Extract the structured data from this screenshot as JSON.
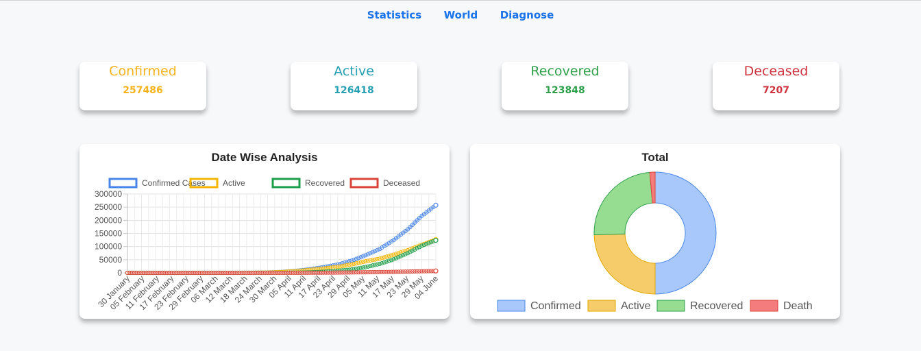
{
  "nav": {
    "items": [
      "Statistics",
      "World",
      "Diagnose"
    ]
  },
  "cards": [
    {
      "title": "Confirmed",
      "value": "257486",
      "color": "#f6b31b"
    },
    {
      "title": "Active",
      "value": "126418",
      "color": "#26a0b4"
    },
    {
      "title": "Recovered",
      "value": "123848",
      "color": "#2ea04a"
    },
    {
      "title": "Deceased",
      "value": "7207",
      "color": "#cf3340"
    }
  ],
  "chart_data": [
    {
      "type": "line",
      "title": "Date Wise Analysis",
      "legend_position": "top",
      "grid": true,
      "ylim": [
        0,
        300000
      ],
      "yticks": [
        "300000",
        "250000",
        "200000",
        "150000",
        "100000",
        "50000",
        "0"
      ],
      "xticks": [
        "30 January",
        "05 February",
        "11 February",
        "17 February",
        "23 February",
        "29 February",
        "06 March",
        "12 March",
        "18 March",
        "24 March",
        "30 March",
        "05 April",
        "11 April",
        "17 April",
        "23 April",
        "29 April",
        "05 May",
        "11 May",
        "17 May",
        "23 May",
        "29 May",
        "04 June"
      ],
      "series": [
        {
          "name": "Confirmed Cases",
          "color": "#4a86e8",
          "values": [
            1,
            3,
            3,
            3,
            3,
            3,
            31,
            74,
            151,
            519,
            1251,
            3577,
            7600,
            13387,
            21700,
            31332,
            46433,
            67152,
            90927,
            125101,
            165799,
            216919,
            257486
          ]
        },
        {
          "name": "Active",
          "color": "#f4b400",
          "values": [
            1,
            3,
            3,
            0,
            0,
            0,
            28,
            64,
            124,
            469,
            1117,
            3219,
            6565,
            11201,
            16689,
            22629,
            32134,
            44029,
            53946,
            69244,
            86110,
            106737,
            126418
          ]
        },
        {
          "name": "Recovered",
          "color": "#1e9e4a",
          "values": [
            0,
            0,
            0,
            3,
            3,
            3,
            3,
            10,
            24,
            40,
            102,
            229,
            774,
            1749,
            4325,
            7696,
            12726,
            21916,
            34109,
            51784,
            75000,
            103000,
            123848
          ]
        },
        {
          "name": "Deceased",
          "color": "#db4437",
          "values": [
            0,
            0,
            0,
            0,
            0,
            0,
            0,
            0,
            3,
            10,
            32,
            83,
            249,
            437,
            686,
            1007,
            1573,
            2206,
            2872,
            3720,
            4706,
            6075,
            7207
          ]
        }
      ]
    },
    {
      "type": "pie",
      "title": "Total",
      "legend_position": "bottom",
      "labels": [
        "Confirmed",
        "Active",
        "Recovered",
        "Death"
      ],
      "values": [
        257486,
        126418,
        123848,
        7207
      ],
      "colors": [
        "#a8c8fb",
        "#f6cc6a",
        "#96dd92",
        "#f47c7c"
      ],
      "borders": [
        "#4a86e8",
        "#e0a800",
        "#2ea04a",
        "#db4437"
      ]
    }
  ]
}
